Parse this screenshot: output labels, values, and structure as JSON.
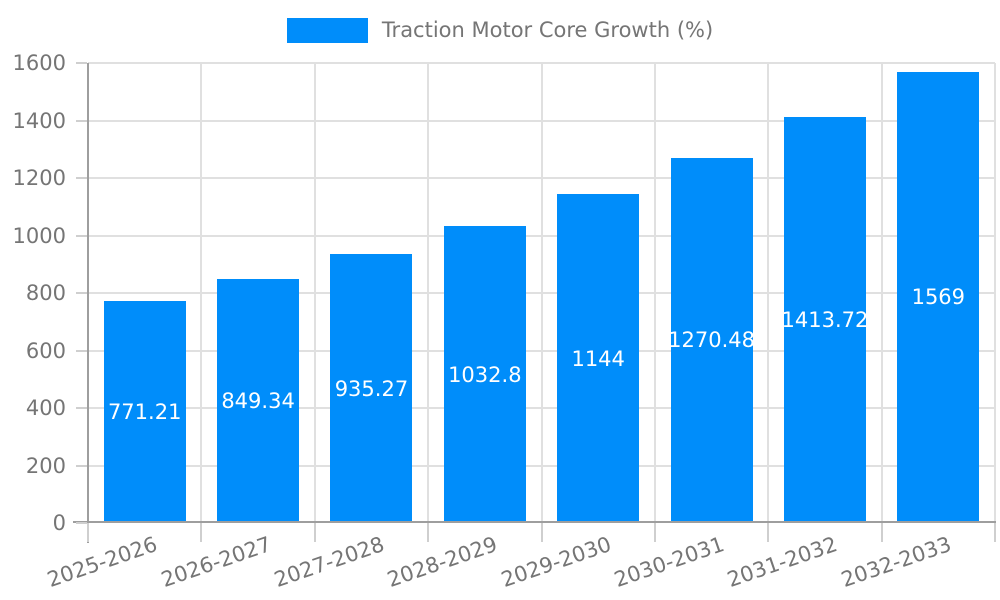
{
  "legend": {
    "label": "Traction Motor Core Growth (%)"
  },
  "chart_data": {
    "type": "bar",
    "title": "",
    "categories": [
      "2025-2026",
      "2026-2027",
      "2027-2028",
      "2028-2029",
      "2029-2030",
      "2030-2031",
      "2031-2032",
      "2032-2033"
    ],
    "series": [
      {
        "name": "Traction Motor Core Growth (%)",
        "values": [
          771.21,
          849.34,
          935.27,
          1032.8,
          1144,
          1270.48,
          1413.72,
          1569
        ],
        "labels": [
          "771.21",
          "849.34",
          "935.27",
          "1032.8",
          "1144",
          "1270.48",
          "1413.72",
          "1569"
        ]
      }
    ],
    "xlabel": "",
    "ylabel": "",
    "ylim": [
      0,
      1600
    ],
    "yticks": [
      0,
      200,
      400,
      600,
      800,
      1000,
      1200,
      1400,
      1600
    ],
    "grid": true,
    "legend_position": "top",
    "value_labels_inside": true,
    "colors": {
      "bar": "#008DFA",
      "gridline": "#e0e0e0",
      "axis_line": "#9e9e9e",
      "tick_mark": "#cfcfcf",
      "axis_text": "#757575",
      "value_text": "#ffffff",
      "background": "#ffffff"
    }
  }
}
